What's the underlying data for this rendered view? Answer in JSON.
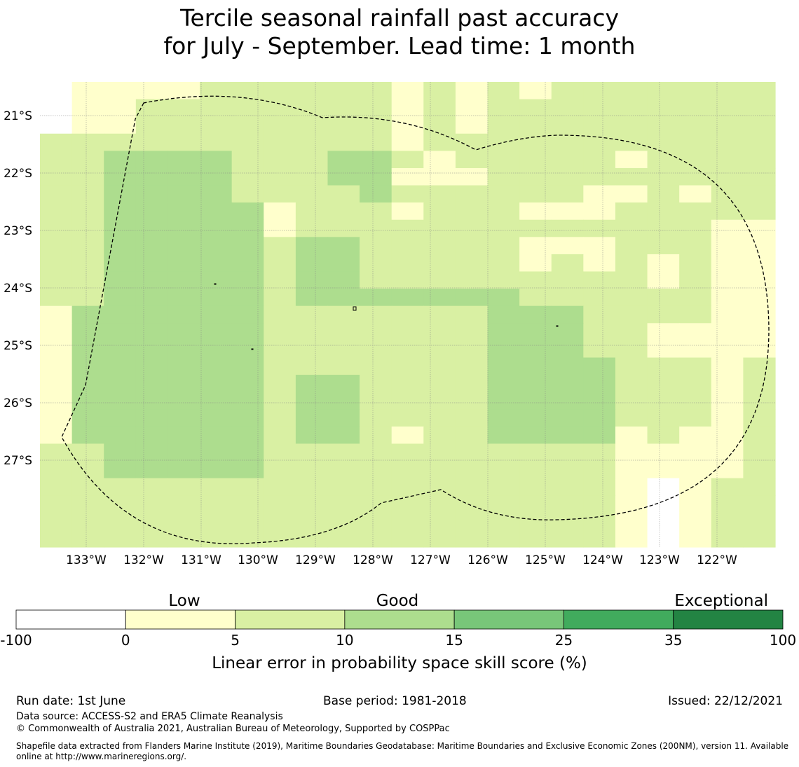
{
  "title": {
    "line1": "Tercile seasonal rainfall past accuracy",
    "line2": "for July - September. Lead time: 1 month"
  },
  "map": {
    "lat_labels": [
      "21°S",
      "22°S",
      "23°S",
      "24°S",
      "25°S",
      "26°S",
      "27°S"
    ],
    "lon_labels": [
      "133°W",
      "132°W",
      "131°W",
      "130°W",
      "129°W",
      "128°W",
      "127°W",
      "126°W",
      "125°W",
      "124°W",
      "123°W",
      "122°W"
    ],
    "grid_color": "#888888",
    "boundary_style": "dashed",
    "cell_classes": [
      "0 1 1 1 1 2 2 2 2 2 2 1 2 1 2 1 2 2 2 2 2 2 2",
      "0 1 1 2 2 2 2 2 2 2 2 1 2 1 2 2 2 2 2 2 2 2 2",
      "0 1 1 2 2 2 2 2 2 2 2 1 2 1 2 2 2 2 2 2 2 2 2",
      "2 2 2 2 2 2 2 2 2 2 2 1 2 2 2 2 2 2 2 2 2 2 2",
      "2 2 3 3 3 3 2 2 2 3 3 2 1 2 2 2 2 2 1 2 2 2 2",
      "2 2 3 3 3 3 2 2 2 3 3 1 1 1 2 2 2 2 2 2 2 2 2",
      "2 2 3 3 3 3 2 2 2 2 3 2 2 2 2 2 2 1 1 2 1 2 2",
      "2 2 3 3 3 3 3 1 2 2 2 1 2 2 2 1 1 1 2 2 2 2 2",
      "2 2 3 3 3 3 3 1 2 2 2 2 2 2 2 2 2 2 2 2 2 1 1",
      "2 2 3 3 3 3 3 2 3 3 2 2 2 2 2 1 1 1 2 2 2 1 1",
      "2 2 3 3 3 3 3 2 3 3 2 2 2 2 2 1 2 1 2 1 2 1 1",
      "2 2 3 3 3 3 3 2 3 3 2 2 2 2 2 2 2 2 2 1 2 1 1",
      "2 2 3 3 3 3 3 2 3 3 3 3 3 3 3 2 2 2 2 2 2 1 1",
      "1 3 3 3 3 3 3 2 2 2 2 2 2 2 3 3 3 2 2 2 2 1 1",
      "1 3 3 3 3 3 3 2 2 2 2 2 2 2 3 3 3 2 2 1 1 1 1",
      "1 3 3 3 3 3 3 2 2 2 2 2 2 2 3 3 3 2 2 1 1 1 1",
      "1 3 3 3 3 3 3 2 2 2 2 2 2 2 3 3 3 3 2 2 2 1 2",
      "1 3 3 3 3 3 3 2 3 3 2 2 2 2 3 3 3 3 2 2 2 1 2",
      "1 3 3 3 3 3 3 2 3 3 2 2 2 2 3 3 3 3 2 2 2 1 2",
      "1 3 3 3 3 3 3 2 3 3 2 2 2 2 3 3 3 3 2 2 2 1 2",
      "1 3 3 3 3 3 3 2 3 3 2 1 2 2 3 3 3 3 1 2 1 1 2",
      "2 2 3 3 3 3 3 2 2 2 2 2 2 2 2 2 2 2 1 1 1 1 2",
      "2 2 3 3 3 3 3 2 2 2 2 2 2 2 2 2 2 2 1 1 1 1 2",
      "2 2 2 2 2 2 2 2 2 2 2 2 2 2 2 2 2 2 1 0 1 2 2",
      "2 2 2 2 2 2 2 2 2 2 2 2 2 2 2 2 2 2 1 0 1 2 2",
      "2 2 2 2 2 2 2 2 2 2 2 2 2 2 2 2 2 2 1 0 1 2 2",
      "2 2 2 2 2 2 2 2 2 2 2 2 2 2 2 2 2 2 1 0 1 2 2"
    ]
  },
  "colorbar": {
    "category_labels": [
      "Low",
      "Good",
      "Exceptional"
    ],
    "tick_labels": [
      "-100",
      "0",
      "5",
      "10",
      "15",
      "25",
      "35",
      "100"
    ],
    "colors": [
      "#ffffff",
      "#ffffcc",
      "#d9f0a3",
      "#addd8e",
      "#78c679",
      "#41ab5d",
      "#238443"
    ],
    "label": "Linear error in probability space skill score (%)"
  },
  "footer": {
    "run_date": "Run date: 1st June",
    "base_period": "Base period: 1981-2018",
    "issued": "Issued: 22/12/2021",
    "data_source": "Data source: ACCESS-S2 and ERA5 Climate Reanalysis",
    "copyright": "© Commonwealth of Australia 2021, Australian Bureau of Meteorology, Supported by COSPPac",
    "shapefile": "Shapefile data extracted from Flanders Marine Institute (2019), Maritime Boundaries Geodatabase: Maritime Boundaries and Exclusive Economic Zones (200NM), version 11. Available online at http://www.marineregions.org/."
  }
}
